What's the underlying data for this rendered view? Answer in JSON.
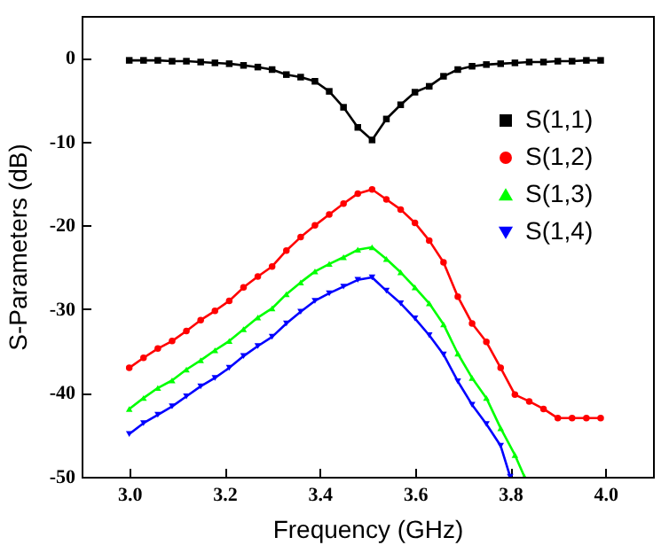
{
  "chart_data": {
    "type": "line",
    "xlabel": "Frequency (GHz)",
    "ylabel": "S-Parameters (dB)",
    "x": [
      3.0,
      3.03,
      3.06,
      3.09,
      3.12,
      3.15,
      3.18,
      3.21,
      3.24,
      3.27,
      3.3,
      3.33,
      3.36,
      3.39,
      3.42,
      3.45,
      3.48,
      3.51,
      3.54,
      3.57,
      3.6,
      3.63,
      3.66,
      3.69,
      3.72,
      3.75,
      3.78,
      3.81,
      3.84,
      3.87,
      3.9,
      3.93,
      3.96,
      3.99
    ],
    "series": [
      {
        "name": "S(1,1)",
        "color": "#000000",
        "marker": "square",
        "values": [
          -0.3,
          -0.3,
          -0.3,
          -0.4,
          -0.4,
          -0.5,
          -0.6,
          -0.7,
          -0.9,
          -1.1,
          -1.4,
          -2.0,
          -2.3,
          -2.8,
          -4.0,
          -5.9,
          -8.3,
          -9.8,
          -7.3,
          -5.6,
          -4.1,
          -3.4,
          -2.2,
          -1.4,
          -1.0,
          -0.8,
          -0.7,
          -0.6,
          -0.5,
          -0.5,
          -0.4,
          -0.4,
          -0.3,
          -0.3
        ]
      },
      {
        "name": "S(1,2)",
        "color": "#ff0000",
        "marker": "circle",
        "values": [
          -37.0,
          -35.8,
          -34.7,
          -33.8,
          -32.6,
          -31.3,
          -30.2,
          -29.0,
          -27.4,
          -26.1,
          -24.9,
          -23.0,
          -21.4,
          -20.0,
          -18.7,
          -17.4,
          -16.2,
          -15.7,
          -16.9,
          -18.1,
          -19.7,
          -21.8,
          -24.4,
          -28.5,
          -31.7,
          -33.9,
          -37.0,
          -40.2,
          -41.0,
          -41.9,
          -43.0,
          -43.0,
          -43.0,
          -43.0
        ]
      },
      {
        "name": "S(1,3)",
        "color": "#00ff00",
        "marker": "triangle-up",
        "x": [
          3.0,
          3.03,
          3.06,
          3.09,
          3.12,
          3.15,
          3.18,
          3.21,
          3.24,
          3.27,
          3.3,
          3.33,
          3.36,
          3.39,
          3.42,
          3.45,
          3.48,
          3.51,
          3.54,
          3.57,
          3.6,
          3.63,
          3.66,
          3.69,
          3.72,
          3.75,
          3.78,
          3.81,
          3.83
        ],
        "values": [
          -41.9,
          -40.6,
          -39.4,
          -38.5,
          -37.2,
          -36.1,
          -34.9,
          -33.8,
          -32.4,
          -31.0,
          -29.9,
          -28.2,
          -26.8,
          -25.5,
          -24.6,
          -23.8,
          -22.9,
          -22.6,
          -24.0,
          -25.6,
          -27.4,
          -29.3,
          -31.8,
          -35.3,
          -38.2,
          -40.6,
          -44.2,
          -47.4,
          -50
        ]
      },
      {
        "name": "S(1,4)",
        "color": "#0000ff",
        "marker": "triangle-down",
        "x": [
          3.0,
          3.03,
          3.06,
          3.09,
          3.12,
          3.15,
          3.18,
          3.21,
          3.24,
          3.27,
          3.3,
          3.33,
          3.36,
          3.39,
          3.42,
          3.45,
          3.48,
          3.51,
          3.54,
          3.57,
          3.6,
          3.63,
          3.66,
          3.69,
          3.72,
          3.75,
          3.78,
          3.8
        ],
        "values": [
          -44.9,
          -43.6,
          -42.6,
          -41.6,
          -40.4,
          -39.2,
          -38.2,
          -37.0,
          -35.6,
          -34.4,
          -33.3,
          -31.7,
          -30.3,
          -29.0,
          -28.1,
          -27.3,
          -26.5,
          -26.2,
          -27.8,
          -29.3,
          -31.1,
          -33.1,
          -35.4,
          -38.6,
          -41.4,
          -43.7,
          -46.3,
          -50
        ]
      }
    ],
    "xlim": [
      2.9,
      4.1
    ],
    "xticks": [
      {
        "value": 3,
        "label": "3.0"
      },
      {
        "value": 3.2,
        "label": "3.2"
      },
      {
        "value": 3.4,
        "label": "3.4"
      },
      {
        "value": 3.6,
        "label": "3.6"
      },
      {
        "value": 3.8,
        "label": "3.8"
      },
      {
        "value": 4,
        "label": "4.0"
      }
    ],
    "ylim": [
      -50,
      5
    ],
    "yticks": [
      -50,
      -40,
      -30,
      -20,
      -10,
      0
    ],
    "legend": "top right",
    "grid": false
  }
}
